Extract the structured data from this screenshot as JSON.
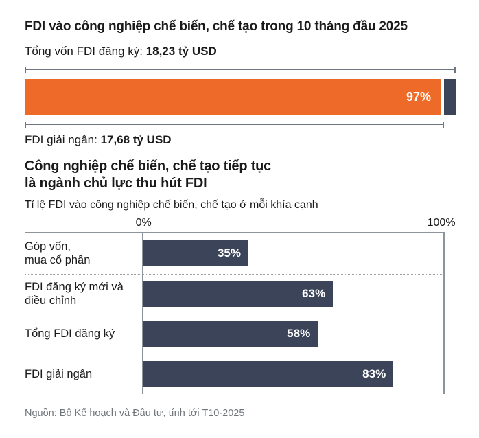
{
  "header": {
    "title": "FDI vào công nghiệp chế biến, chế tạo trong 10 tháng đầu 2025",
    "registered_label": "Tổng vốn FDI đăng ký:",
    "registered_value": "18,23 tỷ USD",
    "progress_pct_label": "97%",
    "progress_pct": 97,
    "disbursed_label": "FDI giải ngân:",
    "disbursed_value": "17,68 tỷ USD"
  },
  "section": {
    "heading_line1": "Công nghiệp chế biến, chế tạo tiếp tục",
    "heading_line2": "là ngành chủ lực thu hút FDI",
    "subtitle": "Tỉ lệ FDI vào công nghiệp chế biến, chế tạo ở mỗi khía cạnh"
  },
  "chart_data": {
    "type": "bar",
    "orientation": "horizontal",
    "title": "Tỉ lệ FDI vào công nghiệp chế biến, chế tạo ở mỗi khía cạnh",
    "categories": [
      "Góp vốn, mua cổ phần",
      "FDI đăng ký mới và điều chỉnh",
      "Tổng FDI đăng ký",
      "FDI giải ngân"
    ],
    "values": [
      35,
      63,
      58,
      83
    ],
    "axis_ticks": [
      "0%",
      "100%"
    ],
    "tick_0": "0%",
    "tick_100": "100%",
    "xlim": [
      0,
      100
    ],
    "bar_color": "#3b4459",
    "grid": "vertical-edges-only",
    "legend": "none",
    "rows": [
      {
        "label_line1": "Góp vốn,",
        "label_line2": "mua cổ phần",
        "value": 35,
        "value_label": "35%"
      },
      {
        "label_line1": "FDI đăng ký mới và",
        "label_line2": "điều chỉnh",
        "value": 63,
        "value_label": "63%"
      },
      {
        "label_line1": "Tổng FDI đăng ký",
        "label_line2": "",
        "value": 58,
        "value_label": "58%"
      },
      {
        "label_line1": "FDI giải ngân",
        "label_line2": "",
        "value": 83,
        "value_label": "83%"
      }
    ]
  },
  "top_bar": {
    "fill_pct": 97,
    "fill_color": "#ee6a28",
    "remainder_color": "#3b4459"
  },
  "colors": {
    "accent_orange": "#ee6a28",
    "accent_navy": "#3b4459",
    "ruler_gray": "#6d7682",
    "axis_gray": "#8d949c",
    "footer_gray": "#70757a"
  },
  "footer": {
    "source": "Nguồn: Bộ Kế hoạch và Đầu tư, tính tới T10-2025"
  }
}
